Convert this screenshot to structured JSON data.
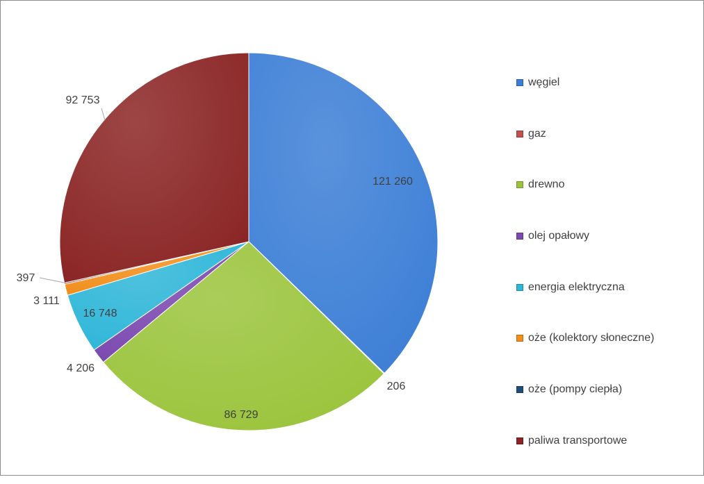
{
  "chart_data": {
    "type": "pie",
    "title": "",
    "legend_position": "right",
    "start_angle": "12 o'clock, clockwise",
    "slices": [
      {
        "name": "węgiel",
        "value": 121260,
        "label": "121 260",
        "color": "#3d7fd6"
      },
      {
        "name": "oże (pompy ciepła)",
        "value": 206,
        "label": "206",
        "color": "#1f4e79"
      },
      {
        "name": "drewno",
        "value": 86729,
        "label": "86 729",
        "color": "#9bc43c"
      },
      {
        "name": "olej opałowy",
        "value": 4206,
        "label": "4 206",
        "color": "#7b49b0"
      },
      {
        "name": "energia elektryczna",
        "value": 16748,
        "label": "16 748",
        "color": "#2eb6d8"
      },
      {
        "name": "oże (kolektory słoneczne)",
        "value": 3111,
        "label": "3 111",
        "color": "#f28f1c"
      },
      {
        "name": "gaz",
        "value": 397,
        "label": "397",
        "color": "#b84a4a"
      },
      {
        "name": "paliwa transportowe",
        "value": 92753,
        "label": "92 753",
        "color": "#8b2525"
      }
    ],
    "legend": [
      {
        "label": "węgiel",
        "color": "#3d7fd6"
      },
      {
        "label": "gaz",
        "color": "#c0504d"
      },
      {
        "label": "drewno",
        "color": "#9bc43c"
      },
      {
        "label": "olej opałowy",
        "color": "#7b49b0"
      },
      {
        "label": "energia elektryczna",
        "color": "#2eb6d8"
      },
      {
        "label": "oże (kolektory słoneczne)",
        "color": "#f28f1c"
      },
      {
        "label": "oże (pompy ciepła)",
        "color": "#1f4e79"
      },
      {
        "label": "paliwa transportowe",
        "color": "#8b2525"
      }
    ]
  }
}
